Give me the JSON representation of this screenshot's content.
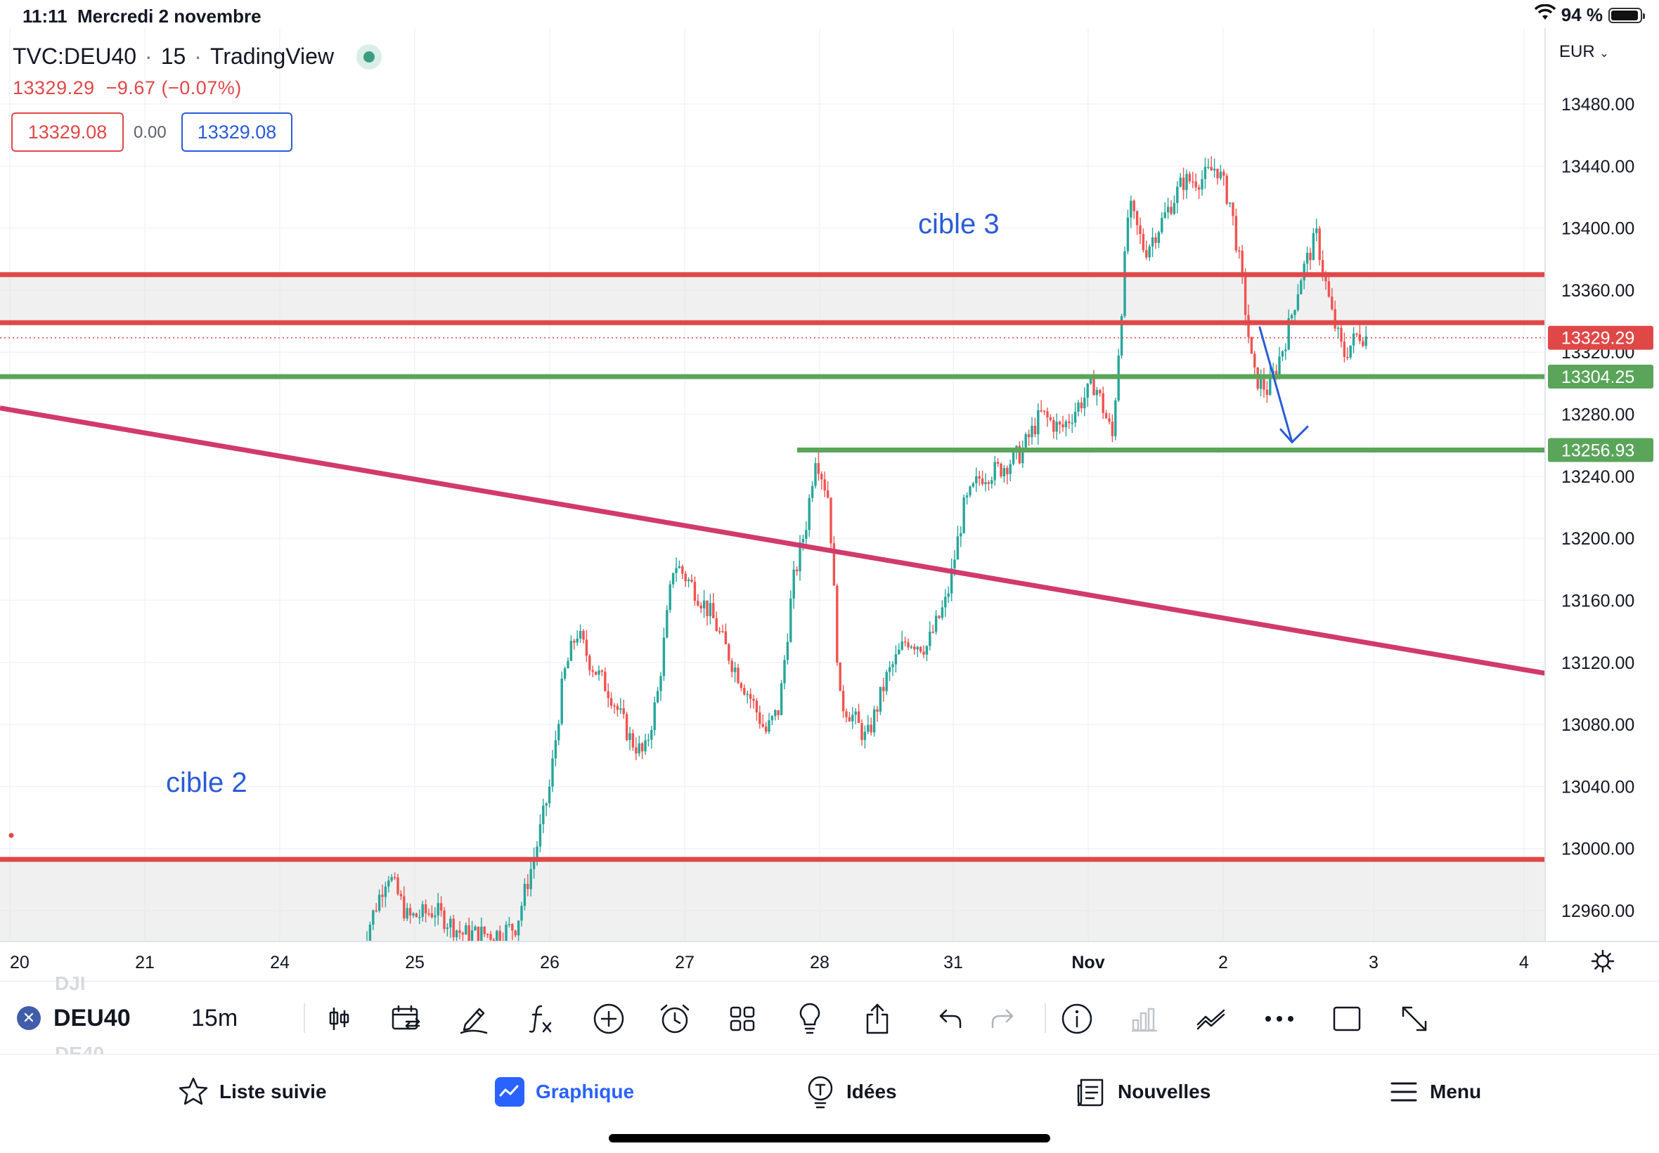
{
  "status_bar": {
    "time": "11:11",
    "date": "Mercredi 2 novembre",
    "battery": "94 %"
  },
  "header": {
    "symbol": "TVC:DEU40",
    "interval": "15",
    "source": "TradingView",
    "last_price": "13329.29",
    "change": "−9.67",
    "change_pct": "(−0.07%)",
    "sell": "13329.08",
    "spread": "0.00",
    "buy": "13329.08"
  },
  "currency": "EUR",
  "chart_data": {
    "type": "candlestick",
    "symbol": "TVC:DEU40",
    "interval": "15m",
    "currency": "EUR",
    "y_ticks": [
      13480,
      13440,
      13400,
      13360,
      13320,
      13280,
      13240,
      13200,
      13160,
      13120,
      13080,
      13040,
      13000,
      12960
    ],
    "x_ticks": [
      {
        "label": "20",
        "bold": false
      },
      {
        "label": "21",
        "bold": false
      },
      {
        "label": "24",
        "bold": false
      },
      {
        "label": "25",
        "bold": false
      },
      {
        "label": "26",
        "bold": false
      },
      {
        "label": "27",
        "bold": false
      },
      {
        "label": "28",
        "bold": false
      },
      {
        "label": "31",
        "bold": false
      },
      {
        "label": "Nov",
        "bold": true
      },
      {
        "label": "2",
        "bold": false
      },
      {
        "label": "3",
        "bold": false
      },
      {
        "label": "4",
        "bold": false
      }
    ],
    "price_labels": [
      {
        "value": "13329.29",
        "price": 13329.29,
        "color": "#e04848"
      },
      {
        "value": "13304.25",
        "price": 13304.25,
        "color": "#5aa55a"
      },
      {
        "value": "13256.93",
        "price": 13256.93,
        "color": "#5aa55a"
      }
    ],
    "horizontal_levels": [
      {
        "price": 13370,
        "color": "#e04848"
      },
      {
        "price": 13339,
        "color": "#e04848"
      },
      {
        "price": 12993,
        "color": "#e04848"
      },
      {
        "price": 13304.25,
        "color": "#5aa55a"
      },
      {
        "price": 13256.93,
        "color": "#5aa55a"
      }
    ],
    "zones": [
      {
        "from": 13339,
        "to": 13370
      },
      {
        "from": 12935,
        "to": 12993
      }
    ],
    "trendline": {
      "from_price": 13284,
      "to_price": 13113,
      "color": "#d13a6a"
    },
    "annotations": [
      {
        "text": "cible 3",
        "price": 13402
      },
      {
        "text": "cible 2",
        "price": 13042
      }
    ],
    "projection_arrow": {
      "from_price": 13336,
      "to_price": 13262,
      "color": "#2a5bd7"
    },
    "price_path": [
      {
        "day": 24.6,
        "price": 12935
      },
      {
        "day": 24.8,
        "price": 12985
      },
      {
        "day": 24.95,
        "price": 12955
      },
      {
        "day": 25.15,
        "price": 12960
      },
      {
        "day": 25.35,
        "price": 12945
      },
      {
        "day": 25.6,
        "price": 12945
      },
      {
        "day": 25.75,
        "price": 12950
      },
      {
        "day": 25.9,
        "price": 13000
      },
      {
        "day": 26.0,
        "price": 13040
      },
      {
        "day": 26.1,
        "price": 13110
      },
      {
        "day": 26.2,
        "price": 13140
      },
      {
        "day": 26.3,
        "price": 13120
      },
      {
        "day": 26.45,
        "price": 13100
      },
      {
        "day": 26.6,
        "price": 13070
      },
      {
        "day": 26.7,
        "price": 13060
      },
      {
        "day": 26.8,
        "price": 13100
      },
      {
        "day": 26.92,
        "price": 13185
      },
      {
        "day": 27.05,
        "price": 13170
      },
      {
        "day": 27.2,
        "price": 13150
      },
      {
        "day": 27.35,
        "price": 13120
      },
      {
        "day": 27.5,
        "price": 13095
      },
      {
        "day": 27.6,
        "price": 13075
      },
      {
        "day": 27.7,
        "price": 13090
      },
      {
        "day": 27.8,
        "price": 13170
      },
      {
        "day": 27.9,
        "price": 13210
      },
      {
        "day": 27.97,
        "price": 13255
      },
      {
        "day": 28.07,
        "price": 13225
      },
      {
        "day": 28.15,
        "price": 13095
      },
      {
        "day": 28.25,
        "price": 13085
      },
      {
        "day": 28.35,
        "price": 13070
      },
      {
        "day": 28.5,
        "price": 13110
      },
      {
        "day": 28.65,
        "price": 13135
      },
      {
        "day": 28.8,
        "price": 13130
      },
      {
        "day": 28.95,
        "price": 13160
      },
      {
        "day": 29.08,
        "price": 13220
      },
      {
        "day": 29.2,
        "price": 13240
      },
      {
        "day": 29.35,
        "price": 13245
      },
      {
        "day": 29.5,
        "price": 13255
      },
      {
        "day": 29.65,
        "price": 13280
      },
      {
        "day": 29.8,
        "price": 13270
      },
      {
        "day": 29.92,
        "price": 13285
      },
      {
        "day": 30.05,
        "price": 13300
      },
      {
        "day": 30.18,
        "price": 13265
      },
      {
        "day": 30.3,
        "price": 13415
      },
      {
        "day": 30.42,
        "price": 13385
      },
      {
        "day": 30.55,
        "price": 13405
      },
      {
        "day": 30.7,
        "price": 13430
      },
      {
        "day": 30.85,
        "price": 13432
      },
      {
        "day": 30.95,
        "price": 13440
      },
      {
        "day": 31.05,
        "price": 13415
      },
      {
        "day": 31.12,
        "price": 13370
      },
      {
        "day": 31.2,
        "price": 13305
      },
      {
        "day": 31.3,
        "price": 13295
      },
      {
        "day": 31.42,
        "price": 13330
      },
      {
        "day": 31.52,
        "price": 13370
      },
      {
        "day": 31.62,
        "price": 13395
      },
      {
        "day": 31.72,
        "price": 13345
      },
      {
        "day": 31.8,
        "price": 13318
      },
      {
        "day": 31.9,
        "price": 13332
      },
      {
        "day": 31.97,
        "price": 13329
      }
    ]
  },
  "toolbar": {
    "symbol": "DEU40",
    "interval": "15m",
    "ghost_above": "DJI",
    "ghost_below": "DE40"
  },
  "tabs": [
    {
      "label": "Liste suivie",
      "icon": "star-icon",
      "active": false
    },
    {
      "label": "Graphique",
      "icon": "chart-icon",
      "active": true
    },
    {
      "label": "Idées",
      "icon": "lightbulb-icon",
      "active": false
    },
    {
      "label": "Nouvelles",
      "icon": "news-icon",
      "active": false
    },
    {
      "label": "Menu",
      "icon": "menu-icon",
      "active": false
    }
  ],
  "colors": {
    "up": "#26a69a",
    "down": "#ef5350",
    "accent": "#2962ff"
  }
}
